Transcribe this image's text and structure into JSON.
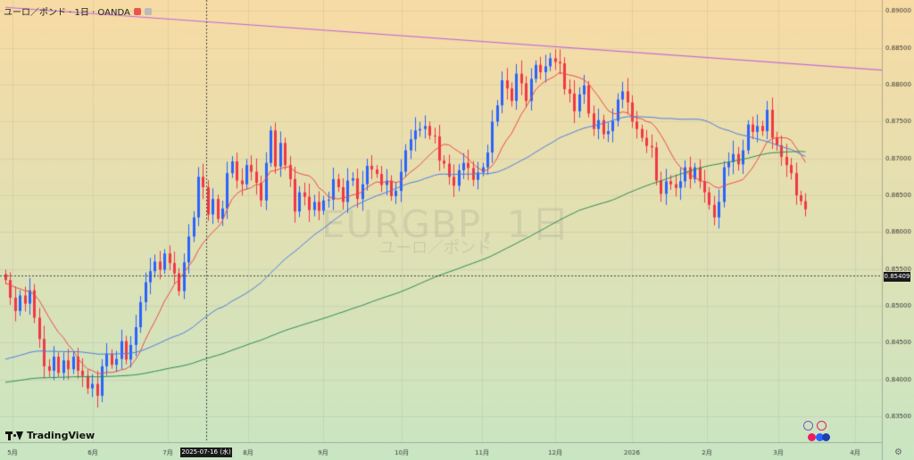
{
  "header": {
    "symbol_title": "ユーロ／ポンド · 1日 · OANDA",
    "badge_color": "#ef5350"
  },
  "watermark": {
    "main": "EURGBP, 1日",
    "sub": "ユーロ／ポンド"
  },
  "logo": {
    "text": "TradingView",
    "icon": "tradingview-logo-icon"
  },
  "crosshair": {
    "price_label": "0.85409",
    "date_label": "2025-07-16 (水)"
  },
  "toolbar_icons": [
    "lightning-icon",
    "globe-icon",
    "circle-icon",
    "circle-icon",
    "circle-icon"
  ],
  "settings_icon": "gear-icon",
  "colors": {
    "bg_top": "#f8dba4",
    "bg_bottom": "#c9e6c3",
    "up": "#2962ff",
    "down": "#f23645",
    "ma_short": "#ef4a4a",
    "ma_mid": "#4d7de0",
    "ma_long": "#2e8b57",
    "trendline": "#c26ad8"
  },
  "chart_data": {
    "type": "candlestick",
    "title": "EURGBP, 1日",
    "y_axis": {
      "ticks": [
        "0.89000",
        "0.88500",
        "0.88000",
        "0.87500",
        "0.87000",
        "0.86500",
        "0.86000",
        "0.85500",
        "0.85000",
        "0.84500",
        "0.84000",
        "0.83500"
      ],
      "range": [
        0.8315,
        0.8915
      ]
    },
    "x_axis": {
      "ticks": [
        "5月",
        "6月",
        "7月",
        "8月",
        "9月",
        "10月",
        "11月",
        "12月",
        "2026",
        "2月",
        "3月",
        "4月"
      ]
    },
    "series_close": [
      0.8535,
      0.8511,
      0.8493,
      0.8514,
      0.8503,
      0.8521,
      0.8484,
      0.8455,
      0.8418,
      0.8412,
      0.8431,
      0.8409,
      0.8426,
      0.8414,
      0.8431,
      0.8412,
      0.8405,
      0.8388,
      0.8394,
      0.8378,
      0.8418,
      0.8435,
      0.842,
      0.8428,
      0.8452,
      0.8427,
      0.8447,
      0.8471,
      0.8505,
      0.8532,
      0.8547,
      0.856,
      0.8549,
      0.8571,
      0.8558,
      0.8544,
      0.852,
      0.8559,
      0.8594,
      0.862,
      0.8675,
      0.8661,
      0.8624,
      0.8645,
      0.8618,
      0.8632,
      0.868,
      0.8696,
      0.867,
      0.8665,
      0.8691,
      0.8682,
      0.8667,
      0.8643,
      0.8694,
      0.8738,
      0.8689,
      0.8721,
      0.8691,
      0.8672,
      0.8628,
      0.8654,
      0.8648,
      0.863,
      0.8641,
      0.8629,
      0.8643,
      0.8644,
      0.8672,
      0.8661,
      0.8641,
      0.867,
      0.8673,
      0.8645,
      0.8665,
      0.869,
      0.8685,
      0.8679,
      0.8664,
      0.867,
      0.8649,
      0.8656,
      0.8682,
      0.8711,
      0.8726,
      0.8738,
      0.874,
      0.8744,
      0.8731,
      0.873,
      0.8697,
      0.8693,
      0.8675,
      0.8663,
      0.8684,
      0.8694,
      0.8687,
      0.8671,
      0.8681,
      0.8688,
      0.8708,
      0.875,
      0.8772,
      0.8806,
      0.8795,
      0.8778,
      0.8815,
      0.8802,
      0.8778,
      0.8808,
      0.8827,
      0.8817,
      0.8825,
      0.8836,
      0.8831,
      0.8829,
      0.8794,
      0.8788,
      0.8764,
      0.8787,
      0.8799,
      0.8761,
      0.874,
      0.8752,
      0.8733,
      0.8737,
      0.8751,
      0.878,
      0.8791,
      0.8776,
      0.875,
      0.874,
      0.8728,
      0.8717,
      0.8715,
      0.867,
      0.8652,
      0.8669,
      0.8665,
      0.866,
      0.8669,
      0.8688,
      0.8672,
      0.8688,
      0.8669,
      0.8654,
      0.8637,
      0.862,
      0.8641,
      0.8688,
      0.8695,
      0.8706,
      0.8692,
      0.8711,
      0.8746,
      0.8736,
      0.8744,
      0.8737,
      0.8766,
      0.8728,
      0.8718,
      0.8702,
      0.8691,
      0.868,
      0.865,
      0.8642,
      0.8631
    ],
    "ma_short_label": "",
    "trendline_endpoints": [
      [
        0,
        0.8905
      ],
      [
        167,
        0.882
      ]
    ]
  }
}
